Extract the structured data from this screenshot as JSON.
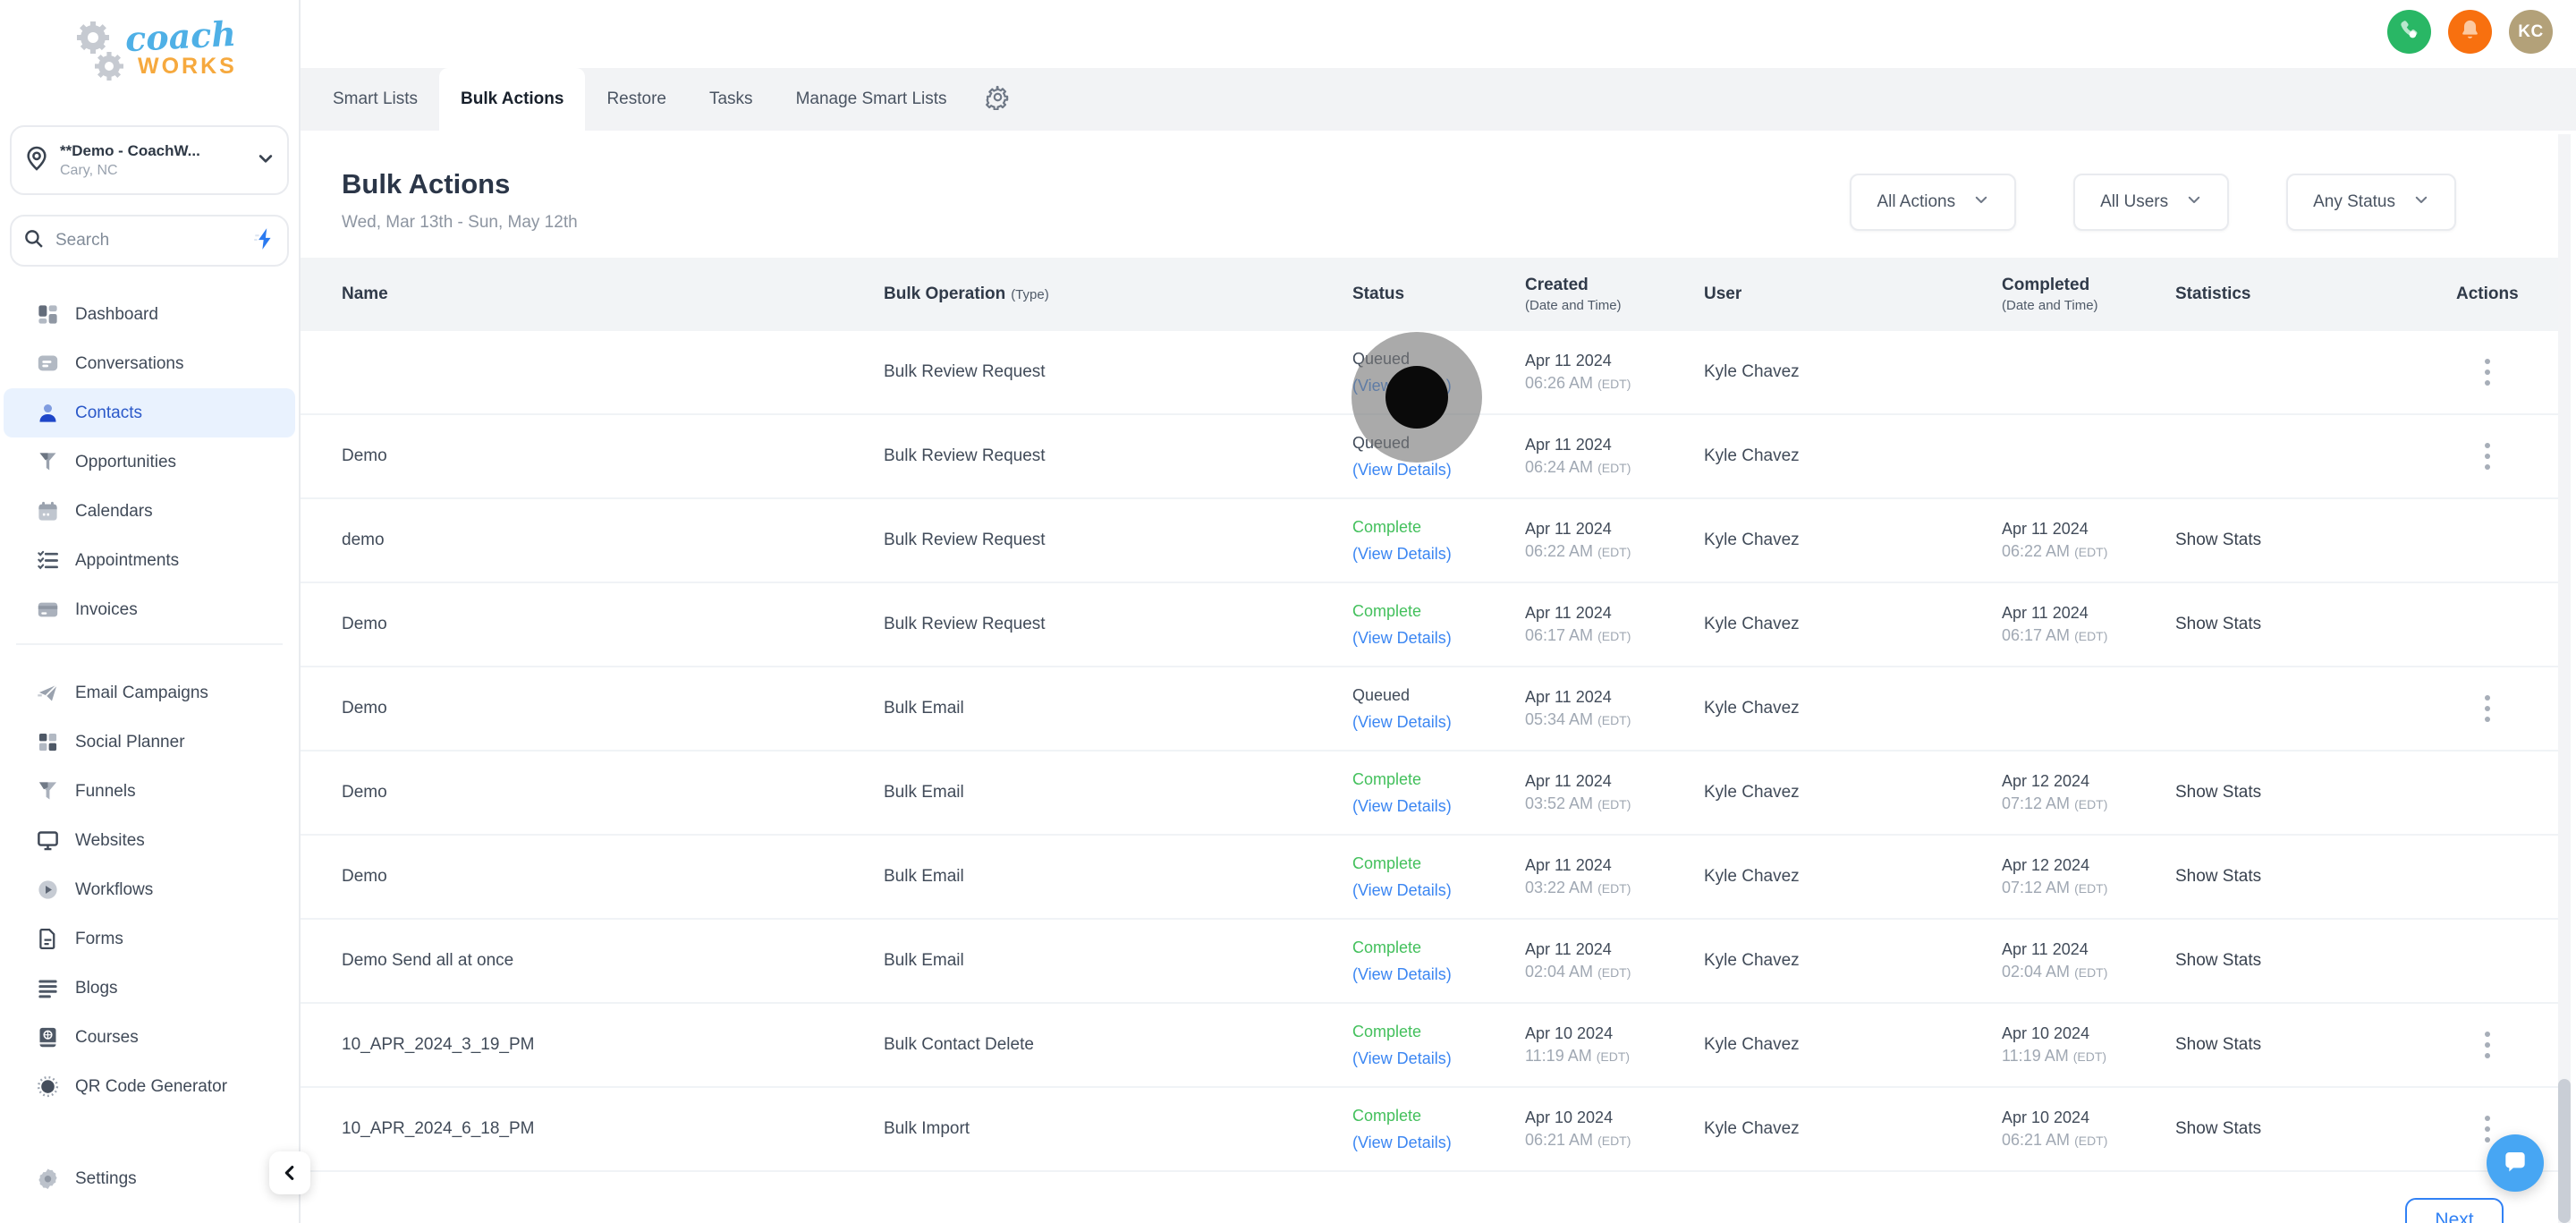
{
  "logo": {
    "line1": "coach",
    "line2": "WORKS"
  },
  "location": {
    "name": "**Demo - CoachW...",
    "city": "Cary, NC"
  },
  "search": {
    "placeholder": "Search"
  },
  "sidebar": {
    "primary": [
      {
        "label": "Dashboard",
        "icon": "dashboard",
        "active": false
      },
      {
        "label": "Conversations",
        "icon": "conversations",
        "active": false
      },
      {
        "label": "Contacts",
        "icon": "contacts",
        "active": true
      },
      {
        "label": "Opportunities",
        "icon": "opportunities",
        "active": false
      },
      {
        "label": "Calendars",
        "icon": "calendars",
        "active": false
      },
      {
        "label": "Appointments",
        "icon": "appointments",
        "active": false
      },
      {
        "label": "Invoices",
        "icon": "invoices",
        "active": false
      }
    ],
    "secondary": [
      {
        "label": "Email Campaigns",
        "icon": "email-campaigns",
        "active": false
      },
      {
        "label": "Social Planner",
        "icon": "social-planner",
        "active": false
      },
      {
        "label": "Funnels",
        "icon": "funnels",
        "active": false
      },
      {
        "label": "Websites",
        "icon": "websites",
        "active": false
      },
      {
        "label": "Workflows",
        "icon": "workflows",
        "active": false
      },
      {
        "label": "Forms",
        "icon": "forms",
        "active": false
      },
      {
        "label": "Blogs",
        "icon": "blogs",
        "active": false
      },
      {
        "label": "Courses",
        "icon": "courses",
        "active": false
      },
      {
        "label": "QR Code Generator",
        "icon": "qr-code",
        "active": false
      }
    ],
    "settings_label": "Settings"
  },
  "topbar": {
    "avatar_initials": "KC"
  },
  "tabs": {
    "items": [
      "Smart Lists",
      "Bulk Actions",
      "Restore",
      "Tasks",
      "Manage Smart Lists"
    ],
    "active": "Bulk Actions"
  },
  "page": {
    "title": "Bulk Actions",
    "date_range": "Wed, Mar 13th - Sun, May 12th"
  },
  "filters": [
    {
      "label": "All Actions"
    },
    {
      "label": "All Users"
    },
    {
      "label": "Any Status"
    }
  ],
  "table": {
    "columns": [
      {
        "label": "Name"
      },
      {
        "label": "Bulk Operation",
        "sub_inline": "(Type)"
      },
      {
        "label": "Status"
      },
      {
        "label": "Created",
        "sub": "(Date and Time)"
      },
      {
        "label": "User"
      },
      {
        "label": "Completed",
        "sub": "(Date and Time)"
      },
      {
        "label": "Statistics"
      },
      {
        "label": "Actions"
      }
    ],
    "view_details_label": "(View Details)",
    "timezone_label": "(EDT)",
    "show_stats_label": "Show Stats",
    "rows": [
      {
        "name": "",
        "operation": "Bulk Review Request",
        "status": "Queued",
        "created_date": "Apr 11 2024",
        "created_time": "06:26 AM",
        "user": "Kyle Chavez",
        "completed_date": "",
        "completed_time": "",
        "show_stats": false,
        "kebab": true
      },
      {
        "name": "Demo",
        "operation": "Bulk Review Request",
        "status": "Queued",
        "created_date": "Apr 11 2024",
        "created_time": "06:24 AM",
        "user": "Kyle Chavez",
        "completed_date": "",
        "completed_time": "",
        "show_stats": false,
        "kebab": true
      },
      {
        "name": "demo",
        "operation": "Bulk Review Request",
        "status": "Complete",
        "created_date": "Apr 11 2024",
        "created_time": "06:22 AM",
        "user": "Kyle Chavez",
        "completed_date": "Apr 11 2024",
        "completed_time": "06:22 AM",
        "show_stats": true,
        "kebab": false
      },
      {
        "name": "Demo",
        "operation": "Bulk Review Request",
        "status": "Complete",
        "created_date": "Apr 11 2024",
        "created_time": "06:17 AM",
        "user": "Kyle Chavez",
        "completed_date": "Apr 11 2024",
        "completed_time": "06:17 AM",
        "show_stats": true,
        "kebab": false
      },
      {
        "name": "Demo",
        "operation": "Bulk Email",
        "status": "Queued",
        "created_date": "Apr 11 2024",
        "created_time": "05:34 AM",
        "user": "Kyle Chavez",
        "completed_date": "",
        "completed_time": "",
        "show_stats": false,
        "kebab": true
      },
      {
        "name": "Demo",
        "operation": "Bulk Email",
        "status": "Complete",
        "created_date": "Apr 11 2024",
        "created_time": "03:52 AM",
        "user": "Kyle Chavez",
        "completed_date": "Apr 12 2024",
        "completed_time": "07:12 AM",
        "show_stats": true,
        "kebab": false
      },
      {
        "name": "Demo",
        "operation": "Bulk Email",
        "status": "Complete",
        "created_date": "Apr 11 2024",
        "created_time": "03:22 AM",
        "user": "Kyle Chavez",
        "completed_date": "Apr 12 2024",
        "completed_time": "07:12 AM",
        "show_stats": true,
        "kebab": false
      },
      {
        "name": "Demo Send all at once",
        "operation": "Bulk Email",
        "status": "Complete",
        "created_date": "Apr 11 2024",
        "created_time": "02:04 AM",
        "user": "Kyle Chavez",
        "completed_date": "Apr 11 2024",
        "completed_time": "02:04 AM",
        "show_stats": true,
        "kebab": false
      },
      {
        "name": "10_APR_2024_3_19_PM",
        "operation": "Bulk Contact Delete",
        "status": "Complete",
        "created_date": "Apr 10 2024",
        "created_time": "11:19 AM",
        "user": "Kyle Chavez",
        "completed_date": "Apr 10 2024",
        "completed_time": "11:19 AM",
        "show_stats": true,
        "kebab": true
      },
      {
        "name": "10_APR_2024_6_18_PM",
        "operation": "Bulk Import",
        "status": "Complete",
        "created_date": "Apr 10 2024",
        "created_time": "06:21 AM",
        "user": "Kyle Chavez",
        "completed_date": "Apr 10 2024",
        "completed_time": "06:21 AM",
        "show_stats": true,
        "kebab": true
      }
    ]
  },
  "pagination": {
    "next_label": "Next"
  },
  "colors": {
    "status_complete": "#43c05c",
    "link_blue": "#3b86f2",
    "next_blue": "#2f80f4",
    "chat_blue": "#47a6f3",
    "phone_green": "#29b765",
    "bell_orange": "#f8700f",
    "avatar_tan": "#b3a179",
    "active_nav_bg": "#e9f2fe",
    "active_nav_text": "#2b59c9"
  }
}
